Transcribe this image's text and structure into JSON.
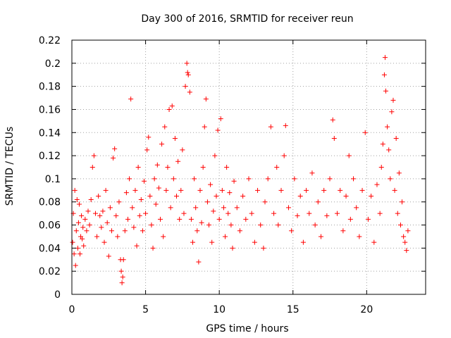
{
  "chart_data": {
    "type": "scatter",
    "title": "Day 300 of 2016, SRMTID for receiver reun",
    "xlabel": "GPS time / hours",
    "ylabel": "SRMTID / TECUs",
    "xlim": [
      0,
      24
    ],
    "ylim": [
      0,
      0.22
    ],
    "xticks": [
      "0",
      "5",
      "10",
      "15",
      "20"
    ],
    "xtick_values": [
      0,
      5,
      10,
      15,
      20
    ],
    "yticks": [
      "0",
      "0.02",
      "0.04",
      "0.06",
      "0.08",
      "0.1",
      "0.12",
      "0.14",
      "0.16",
      "0.18",
      "0.2",
      "0.22"
    ],
    "ytick_values": [
      0,
      0.02,
      0.04,
      0.06,
      0.08,
      0.1,
      0.12,
      0.14,
      0.16,
      0.18,
      0.2,
      0.22
    ],
    "grid": true,
    "marker": "+",
    "color": "#ff0000",
    "series": [
      {
        "points": [
          [
            0.05,
            0.045
          ],
          [
            0.1,
            0.07
          ],
          [
            0.15,
            0.035
          ],
          [
            0.2,
            0.09
          ],
          [
            0.25,
            0.025
          ],
          [
            0.3,
            0.055
          ],
          [
            0.35,
            0.082
          ],
          [
            0.4,
            0.04
          ],
          [
            0.45,
            0.062
          ],
          [
            0.5,
            0.078
          ],
          [
            0.55,
            0.035
          ],
          [
            0.6,
            0.05
          ],
          [
            0.65,
            0.068
          ],
          [
            0.7,
            0.048
          ],
          [
            0.75,
            0.058
          ],
          [
            0.8,
            0.042
          ],
          [
            0.9,
            0.065
          ],
          [
            1.0,
            0.055
          ],
          [
            1.1,
            0.072
          ],
          [
            1.2,
            0.06
          ],
          [
            1.3,
            0.082
          ],
          [
            1.4,
            0.11
          ],
          [
            1.5,
            0.12
          ],
          [
            1.6,
            0.07
          ],
          [
            1.7,
            0.05
          ],
          [
            1.8,
            0.085
          ],
          [
            1.9,
            0.068
          ],
          [
            2.0,
            0.058
          ],
          [
            2.1,
            0.072
          ],
          [
            2.2,
            0.045
          ],
          [
            2.3,
            0.09
          ],
          [
            2.4,
            0.062
          ],
          [
            2.5,
            0.033
          ],
          [
            2.6,
            0.075
          ],
          [
            2.7,
            0.055
          ],
          [
            2.8,
            0.118
          ],
          [
            2.9,
            0.126
          ],
          [
            3.0,
            0.068
          ],
          [
            3.1,
            0.05
          ],
          [
            3.2,
            0.08
          ],
          [
            3.3,
            0.03
          ],
          [
            3.35,
            0.02
          ],
          [
            3.4,
            0.01
          ],
          [
            3.45,
            0.015
          ],
          [
            3.5,
            0.03
          ],
          [
            3.6,
            0.055
          ],
          [
            3.7,
            0.088
          ],
          [
            3.8,
            0.065
          ],
          [
            3.9,
            0.1
          ],
          [
            4.0,
            0.169
          ],
          [
            4.1,
            0.075
          ],
          [
            4.2,
            0.058
          ],
          [
            4.3,
            0.09
          ],
          [
            4.4,
            0.042
          ],
          [
            4.5,
            0.11
          ],
          [
            4.6,
            0.068
          ],
          [
            4.7,
            0.082
          ],
          [
            4.8,
            0.055
          ],
          [
            4.9,
            0.098
          ],
          [
            5.0,
            0.07
          ],
          [
            5.1,
            0.125
          ],
          [
            5.2,
            0.136
          ],
          [
            5.3,
            0.085
          ],
          [
            5.4,
            0.06
          ],
          [
            5.5,
            0.04
          ],
          [
            5.6,
            0.1
          ],
          [
            5.7,
            0.078
          ],
          [
            5.8,
            0.112
          ],
          [
            5.9,
            0.092
          ],
          [
            6.0,
            0.065
          ],
          [
            6.1,
            0.13
          ],
          [
            6.2,
            0.05
          ],
          [
            6.3,
            0.145
          ],
          [
            6.4,
            0.09
          ],
          [
            6.5,
            0.11
          ],
          [
            6.6,
            0.16
          ],
          [
            6.7,
            0.075
          ],
          [
            6.8,
            0.163
          ],
          [
            6.9,
            0.1
          ],
          [
            7.0,
            0.135
          ],
          [
            7.1,
            0.085
          ],
          [
            7.2,
            0.115
          ],
          [
            7.3,
            0.065
          ],
          [
            7.4,
            0.09
          ],
          [
            7.5,
            0.125
          ],
          [
            7.6,
            0.07
          ],
          [
            7.7,
            0.18
          ],
          [
            7.8,
            0.2
          ],
          [
            7.85,
            0.192
          ],
          [
            7.9,
            0.19
          ],
          [
            8.0,
            0.175
          ],
          [
            8.1,
            0.065
          ],
          [
            8.2,
            0.045
          ],
          [
            8.3,
            0.1
          ],
          [
            8.4,
            0.075
          ],
          [
            8.5,
            0.055
          ],
          [
            8.6,
            0.028
          ],
          [
            8.7,
            0.09
          ],
          [
            8.8,
            0.062
          ],
          [
            8.9,
            0.11
          ],
          [
            9.0,
            0.145
          ],
          [
            9.1,
            0.169
          ],
          [
            9.2,
            0.08
          ],
          [
            9.3,
            0.06
          ],
          [
            9.4,
            0.095
          ],
          [
            9.5,
            0.045
          ],
          [
            9.6,
            0.072
          ],
          [
            9.7,
            0.12
          ],
          [
            9.8,
            0.085
          ],
          [
            9.9,
            0.142
          ],
          [
            10.0,
            0.065
          ],
          [
            10.1,
            0.152
          ],
          [
            10.2,
            0.09
          ],
          [
            10.3,
            0.075
          ],
          [
            10.4,
            0.05
          ],
          [
            10.5,
            0.11
          ],
          [
            10.6,
            0.07
          ],
          [
            10.7,
            0.088
          ],
          [
            10.8,
            0.06
          ],
          [
            10.9,
            0.04
          ],
          [
            11.0,
            0.098
          ],
          [
            11.2,
            0.075
          ],
          [
            11.4,
            0.055
          ],
          [
            11.6,
            0.085
          ],
          [
            11.8,
            0.065
          ],
          [
            12.0,
            0.1
          ],
          [
            12.2,
            0.07
          ],
          [
            12.4,
            0.045
          ],
          [
            12.6,
            0.09
          ],
          [
            12.8,
            0.06
          ],
          [
            13.0,
            0.04
          ],
          [
            13.1,
            0.08
          ],
          [
            13.3,
            0.1
          ],
          [
            13.5,
            0.145
          ],
          [
            13.7,
            0.07
          ],
          [
            13.9,
            0.11
          ],
          [
            14.0,
            0.06
          ],
          [
            14.2,
            0.09
          ],
          [
            14.4,
            0.12
          ],
          [
            14.5,
            0.146
          ],
          [
            14.7,
            0.075
          ],
          [
            14.9,
            0.055
          ],
          [
            15.1,
            0.1
          ],
          [
            15.3,
            0.068
          ],
          [
            15.5,
            0.085
          ],
          [
            15.7,
            0.045
          ],
          [
            15.9,
            0.09
          ],
          [
            16.1,
            0.07
          ],
          [
            16.3,
            0.105
          ],
          [
            16.5,
            0.06
          ],
          [
            16.7,
            0.08
          ],
          [
            16.9,
            0.05
          ],
          [
            17.1,
            0.09
          ],
          [
            17.3,
            0.068
          ],
          [
            17.5,
            0.1
          ],
          [
            17.7,
            0.151
          ],
          [
            17.8,
            0.135
          ],
          [
            18.0,
            0.07
          ],
          [
            18.2,
            0.09
          ],
          [
            18.4,
            0.055
          ],
          [
            18.6,
            0.085
          ],
          [
            18.8,
            0.12
          ],
          [
            18.9,
            0.065
          ],
          [
            19.1,
            0.1
          ],
          [
            19.3,
            0.075
          ],
          [
            19.5,
            0.05
          ],
          [
            19.7,
            0.09
          ],
          [
            19.9,
            0.14
          ],
          [
            20.1,
            0.065
          ],
          [
            20.3,
            0.085
          ],
          [
            20.5,
            0.045
          ],
          [
            20.7,
            0.095
          ],
          [
            20.9,
            0.07
          ],
          [
            21.0,
            0.11
          ],
          [
            21.1,
            0.13
          ],
          [
            21.2,
            0.19
          ],
          [
            21.25,
            0.205
          ],
          [
            21.3,
            0.176
          ],
          [
            21.4,
            0.145
          ],
          [
            21.5,
            0.125
          ],
          [
            21.6,
            0.1
          ],
          [
            21.7,
            0.158
          ],
          [
            21.8,
            0.168
          ],
          [
            21.9,
            0.09
          ],
          [
            22.0,
            0.135
          ],
          [
            22.1,
            0.07
          ],
          [
            22.2,
            0.105
          ],
          [
            22.3,
            0.06
          ],
          [
            22.4,
            0.08
          ],
          [
            22.5,
            0.05
          ],
          [
            22.6,
            0.045
          ],
          [
            22.7,
            0.038
          ],
          [
            22.8,
            0.055
          ]
        ]
      }
    ]
  }
}
